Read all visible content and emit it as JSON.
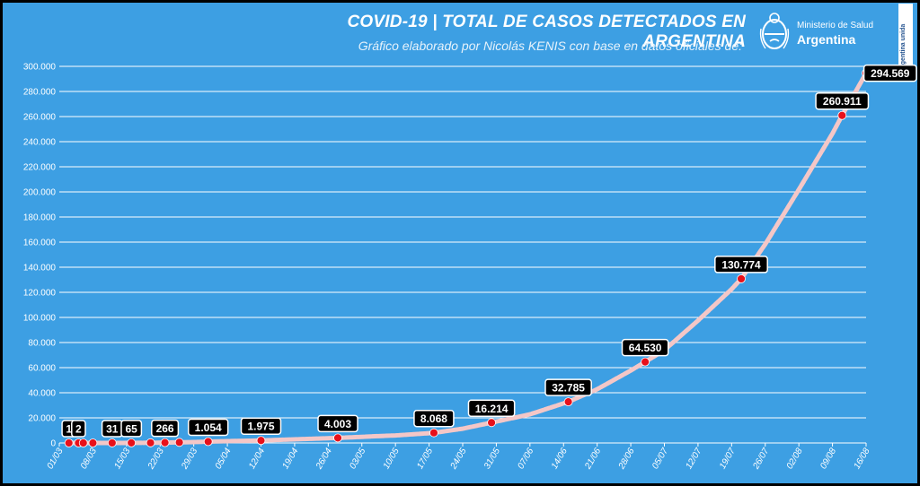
{
  "header": {
    "title": "COVID-19  |  TOTAL DE CASOS DETECTADOS EN ARGENTINA",
    "subtitle": "Gráfico elaborado por Nicolás KENIS con base en datos oficiales de:"
  },
  "logo": {
    "line1": "Ministerio de Salud",
    "line2": "Argentina",
    "badge": "Argentina unida"
  },
  "colors": {
    "background": "#3d9fe3",
    "line": "#f4c7c7",
    "marker": "#e8101a",
    "label_bg": "#000000",
    "label_text": "#ffffff"
  },
  "chart_data": {
    "type": "line",
    "title": "COVID-19 | TOTAL DE CASOS DETECTADOS EN ARGENTINA",
    "xlabel": "",
    "ylabel": "",
    "ylim": [
      0,
      300000
    ],
    "y_ticks": [
      "0",
      "20.000",
      "40.000",
      "60.000",
      "80.000",
      "100.000",
      "120.000",
      "140.000",
      "160.000",
      "180.000",
      "200.000",
      "220.000",
      "240.000",
      "260.000",
      "280.000",
      "300.000"
    ],
    "y_tick_values": [
      0,
      20000,
      40000,
      60000,
      80000,
      100000,
      120000,
      140000,
      160000,
      180000,
      200000,
      220000,
      240000,
      260000,
      280000,
      300000
    ],
    "x_ticks": [
      "01/03",
      "08/03",
      "15/03",
      "22/03",
      "29/03",
      "05/04",
      "12/04",
      "19/04",
      "26/04",
      "03/05",
      "10/05",
      "17/05",
      "24/05",
      "31/05",
      "07/06",
      "14/06",
      "21/06",
      "28/06",
      "05/07",
      "12/07",
      "19/07",
      "26/07",
      "02/08",
      "09/08",
      "16/08"
    ],
    "x_start": "2020-03-01",
    "x_end": "2020-08-16",
    "grid": true,
    "series": [
      {
        "name": "",
        "points": [
          [
            "2020-03-03",
            1
          ],
          [
            "2020-03-05",
            2
          ],
          [
            "2020-03-08",
            12
          ],
          [
            "2020-03-12",
            31
          ],
          [
            "2020-03-16",
            65
          ],
          [
            "2020-03-20",
            128
          ],
          [
            "2020-03-23",
            266
          ],
          [
            "2020-03-26",
            502
          ],
          [
            "2020-03-29",
            745
          ],
          [
            "2020-04-01",
            1054
          ],
          [
            "2020-04-05",
            1451
          ],
          [
            "2020-04-12",
            1975
          ],
          [
            "2020-04-19",
            2839
          ],
          [
            "2020-04-26",
            3780
          ],
          [
            "2020-04-28",
            4003
          ],
          [
            "2020-05-05",
            5208
          ],
          [
            "2020-05-10",
            6034
          ],
          [
            "2020-05-17",
            7805
          ],
          [
            "2020-05-18",
            8068
          ],
          [
            "2020-05-24",
            11353
          ],
          [
            "2020-05-30",
            16214
          ],
          [
            "2020-06-07",
            22794
          ],
          [
            "2020-06-15",
            32785
          ],
          [
            "2020-06-21",
            42785
          ],
          [
            "2020-06-28",
            57744
          ],
          [
            "2020-07-01",
            64530
          ],
          [
            "2020-07-05",
            74000
          ],
          [
            "2020-07-12",
            97509
          ],
          [
            "2020-07-19",
            122524
          ],
          [
            "2020-07-21",
            130774
          ],
          [
            "2020-07-26",
            158334
          ],
          [
            "2020-08-02",
            201919
          ],
          [
            "2020-08-09",
            246499
          ],
          [
            "2020-08-11",
            260911
          ],
          [
            "2020-08-16",
            294569
          ]
        ]
      }
    ],
    "markers": [
      {
        "date": "2020-03-03",
        "value": 1,
        "label": "1",
        "labeled": true
      },
      {
        "date": "2020-03-05",
        "value": 2,
        "label": "2",
        "labeled": true
      },
      {
        "date": "2020-03-06",
        "value": 8,
        "label": "",
        "labeled": false
      },
      {
        "date": "2020-03-08",
        "value": 12,
        "label": "",
        "labeled": false
      },
      {
        "date": "2020-03-12",
        "value": 31,
        "label": "31",
        "labeled": true
      },
      {
        "date": "2020-03-16",
        "value": 65,
        "label": "65",
        "labeled": true
      },
      {
        "date": "2020-03-20",
        "value": 128,
        "label": "",
        "labeled": false
      },
      {
        "date": "2020-03-23",
        "value": 266,
        "label": "266",
        "labeled": true
      },
      {
        "date": "2020-03-26",
        "value": 502,
        "label": "",
        "labeled": false
      },
      {
        "date": "2020-04-01",
        "value": 1054,
        "label": "1.054",
        "labeled": true
      },
      {
        "date": "2020-04-12",
        "value": 1975,
        "label": "1.975",
        "labeled": true
      },
      {
        "date": "2020-04-28",
        "value": 4003,
        "label": "4.003",
        "labeled": true
      },
      {
        "date": "2020-05-18",
        "value": 8068,
        "label": "8.068",
        "labeled": true
      },
      {
        "date": "2020-05-30",
        "value": 16214,
        "label": "16.214",
        "labeled": true
      },
      {
        "date": "2020-06-15",
        "value": 32785,
        "label": "32.785",
        "labeled": true
      },
      {
        "date": "2020-07-01",
        "value": 64530,
        "label": "64.530",
        "labeled": true
      },
      {
        "date": "2020-07-21",
        "value": 130774,
        "label": "130.774",
        "labeled": true
      },
      {
        "date": "2020-08-11",
        "value": 260911,
        "label": "260.911",
        "labeled": true
      },
      {
        "date": "2020-08-16",
        "value": 294569,
        "label": "294.569",
        "labeled": true
      }
    ]
  }
}
